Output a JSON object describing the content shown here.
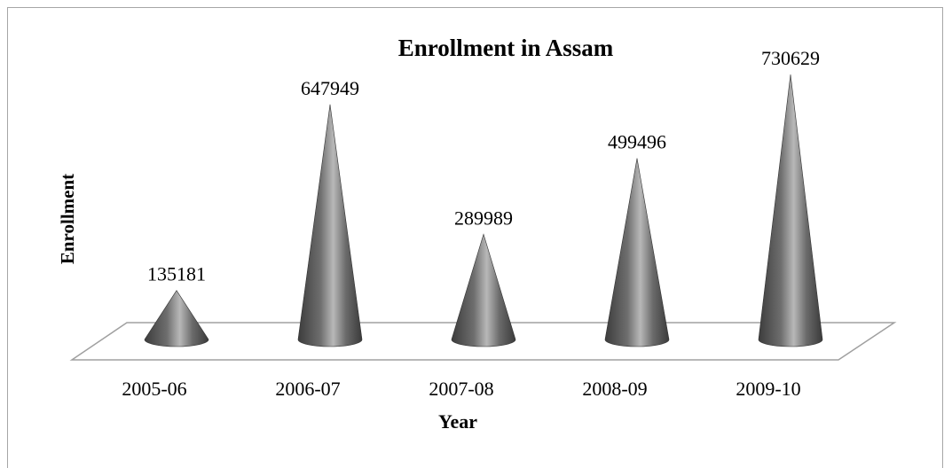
{
  "chart_data": {
    "type": "bar",
    "style": "3d-cone",
    "title": "Enrollment in Assam",
    "xlabel": "Year",
    "ylabel": "Enrollment",
    "categories": [
      "2005-06",
      "2006-07",
      "2007-08",
      "2008-09",
      "2009-10"
    ],
    "values": [
      135181,
      647949,
      289989,
      499496,
      730629
    ],
    "ylim": [
      0,
      800000
    ],
    "grid": false,
    "legend": "none",
    "data_labels": true
  },
  "colors": {
    "cone_dark": "#3c3c3c",
    "cone_mid": "#7a7a7a",
    "cone_light": "#b8b8b8",
    "floor_stroke": "#a0a0a0",
    "frame": "#a6a6a6"
  }
}
